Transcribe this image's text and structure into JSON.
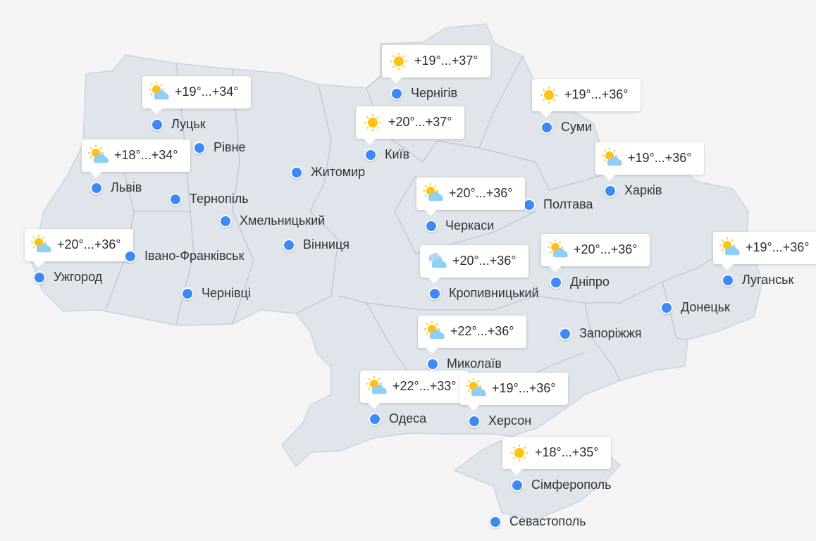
{
  "colors": {
    "background": "#f4f4f4",
    "land": "#dfe5ea",
    "border": "#b6c7d3",
    "dot": "#3f88f7",
    "sun": "#ffc20e",
    "cloud": "#8fcff3"
  },
  "cities": [
    {
      "name": "Чернігів",
      "temp": "+19°...+37°",
      "icon": "sun"
    },
    {
      "name": "Луцьк",
      "temp": "+19°...+34°",
      "icon": "partly-cloudy"
    },
    {
      "name": "Рівне"
    },
    {
      "name": "Київ",
      "temp": "+20°...+37°",
      "icon": "sun"
    },
    {
      "name": "Суми",
      "temp": "+19°...+36°",
      "icon": "sun"
    },
    {
      "name": "Житомир"
    },
    {
      "name": "Львів",
      "temp": "+18°...+34°",
      "icon": "partly-cloudy"
    },
    {
      "name": "Харків",
      "temp": "+19°...+36°",
      "icon": "partly-cloudy"
    },
    {
      "name": "Тернопіль"
    },
    {
      "name": "Полтава"
    },
    {
      "name": "Черкаси",
      "temp": "+20°...+36°",
      "icon": "partly-cloudy"
    },
    {
      "name": "Хмельницький"
    },
    {
      "name": "Вінниця"
    },
    {
      "name": "Ужгород",
      "temp": "+20°...+36°",
      "icon": "partly-cloudy"
    },
    {
      "name": "Івано-Франківськ"
    },
    {
      "name": "Дніпро",
      "temp": "+20°...+36°",
      "icon": "partly-cloudy"
    },
    {
      "name": "Луганськ",
      "temp": "+19°...+36°",
      "icon": "partly-cloudy"
    },
    {
      "name": "Кропивницький",
      "temp": "+20°...+36°",
      "icon": "cloudy"
    },
    {
      "name": "Чернівці"
    },
    {
      "name": "Донецьк"
    },
    {
      "name": "Запоріжжя"
    },
    {
      "name": "Миколаїв",
      "temp": "+22°...+36°",
      "icon": "partly-cloudy"
    },
    {
      "name": "Одеса",
      "temp": "+22°...+33°",
      "icon": "partly-cloudy"
    },
    {
      "name": "Херсон",
      "temp": "+19°...+36°",
      "icon": "partly-cloudy"
    },
    {
      "name": "Сімферополь",
      "temp": "+18°...+35°",
      "icon": "sun"
    },
    {
      "name": "Севастополь"
    }
  ]
}
